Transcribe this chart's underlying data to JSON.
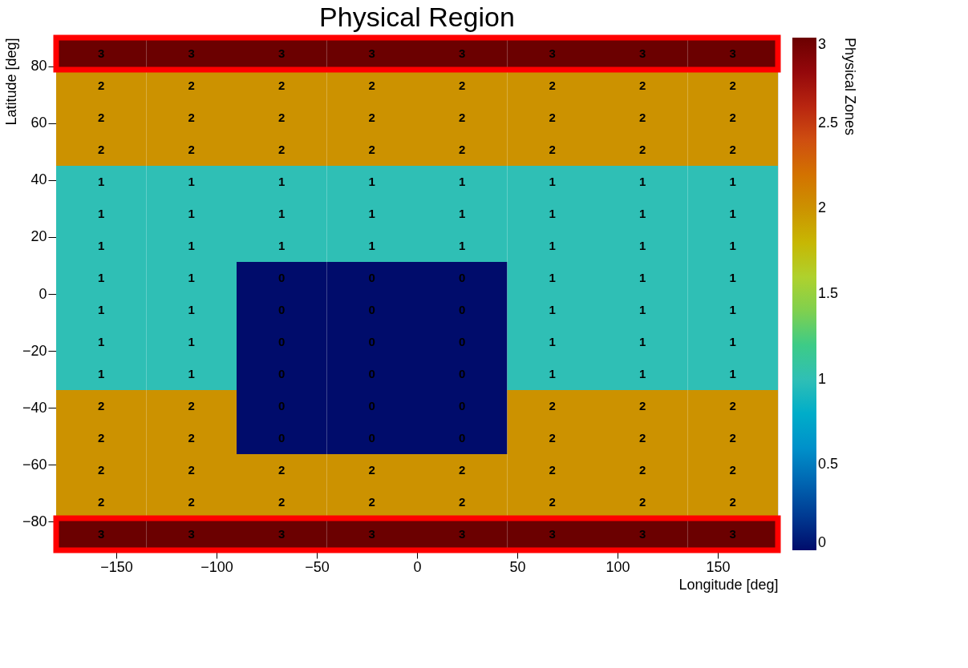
{
  "chart_data": {
    "type": "heatmap",
    "title": "Physical Region",
    "xlabel": "Longitude [deg]",
    "ylabel": "Latitude [deg]",
    "clabel": "Physical Zones",
    "x": [
      -157.5,
      -112.5,
      -67.5,
      -22.5,
      22.5,
      67.5,
      112.5,
      157.5
    ],
    "y": [
      84.375,
      73.125,
      61.875,
      50.625,
      39.375,
      28.125,
      16.875,
      5.625,
      -5.625,
      -16.875,
      -28.125,
      -39.375,
      -50.625,
      -61.875,
      -73.125,
      -84.375
    ],
    "cells": [
      [
        3,
        3,
        3,
        3,
        3,
        3,
        3,
        3
      ],
      [
        2,
        2,
        2,
        2,
        2,
        2,
        2,
        2
      ],
      [
        2,
        2,
        2,
        2,
        2,
        2,
        2,
        2
      ],
      [
        2,
        2,
        2,
        2,
        2,
        2,
        2,
        2
      ],
      [
        1,
        1,
        1,
        1,
        1,
        1,
        1,
        1
      ],
      [
        1,
        1,
        1,
        1,
        1,
        1,
        1,
        1
      ],
      [
        1,
        1,
        1,
        1,
        1,
        1,
        1,
        1
      ],
      [
        1,
        1,
        0,
        0,
        0,
        1,
        1,
        1
      ],
      [
        1,
        1,
        0,
        0,
        0,
        1,
        1,
        1
      ],
      [
        1,
        1,
        0,
        0,
        0,
        1,
        1,
        1
      ],
      [
        1,
        1,
        0,
        0,
        0,
        1,
        1,
        1
      ],
      [
        2,
        2,
        0,
        0,
        0,
        2,
        2,
        2
      ],
      [
        2,
        2,
        0,
        0,
        0,
        2,
        2,
        2
      ],
      [
        2,
        2,
        2,
        2,
        2,
        2,
        2,
        2
      ],
      [
        2,
        2,
        2,
        2,
        2,
        2,
        2,
        2
      ],
      [
        3,
        3,
        3,
        3,
        3,
        3,
        3,
        3
      ]
    ],
    "data_labels": true,
    "xlim": [
      -180,
      180
    ],
    "xticks": [
      -150,
      -100,
      -50,
      0,
      50,
      100,
      150
    ],
    "ylim": [
      -90,
      90
    ],
    "yticks": [
      -80,
      -60,
      -40,
      -20,
      0,
      20,
      40,
      60,
      80
    ],
    "clim": [
      0,
      3
    ],
    "cticks": [
      0,
      0.5,
      1,
      1.5,
      2,
      2.5,
      3
    ],
    "grid": false
  }
}
